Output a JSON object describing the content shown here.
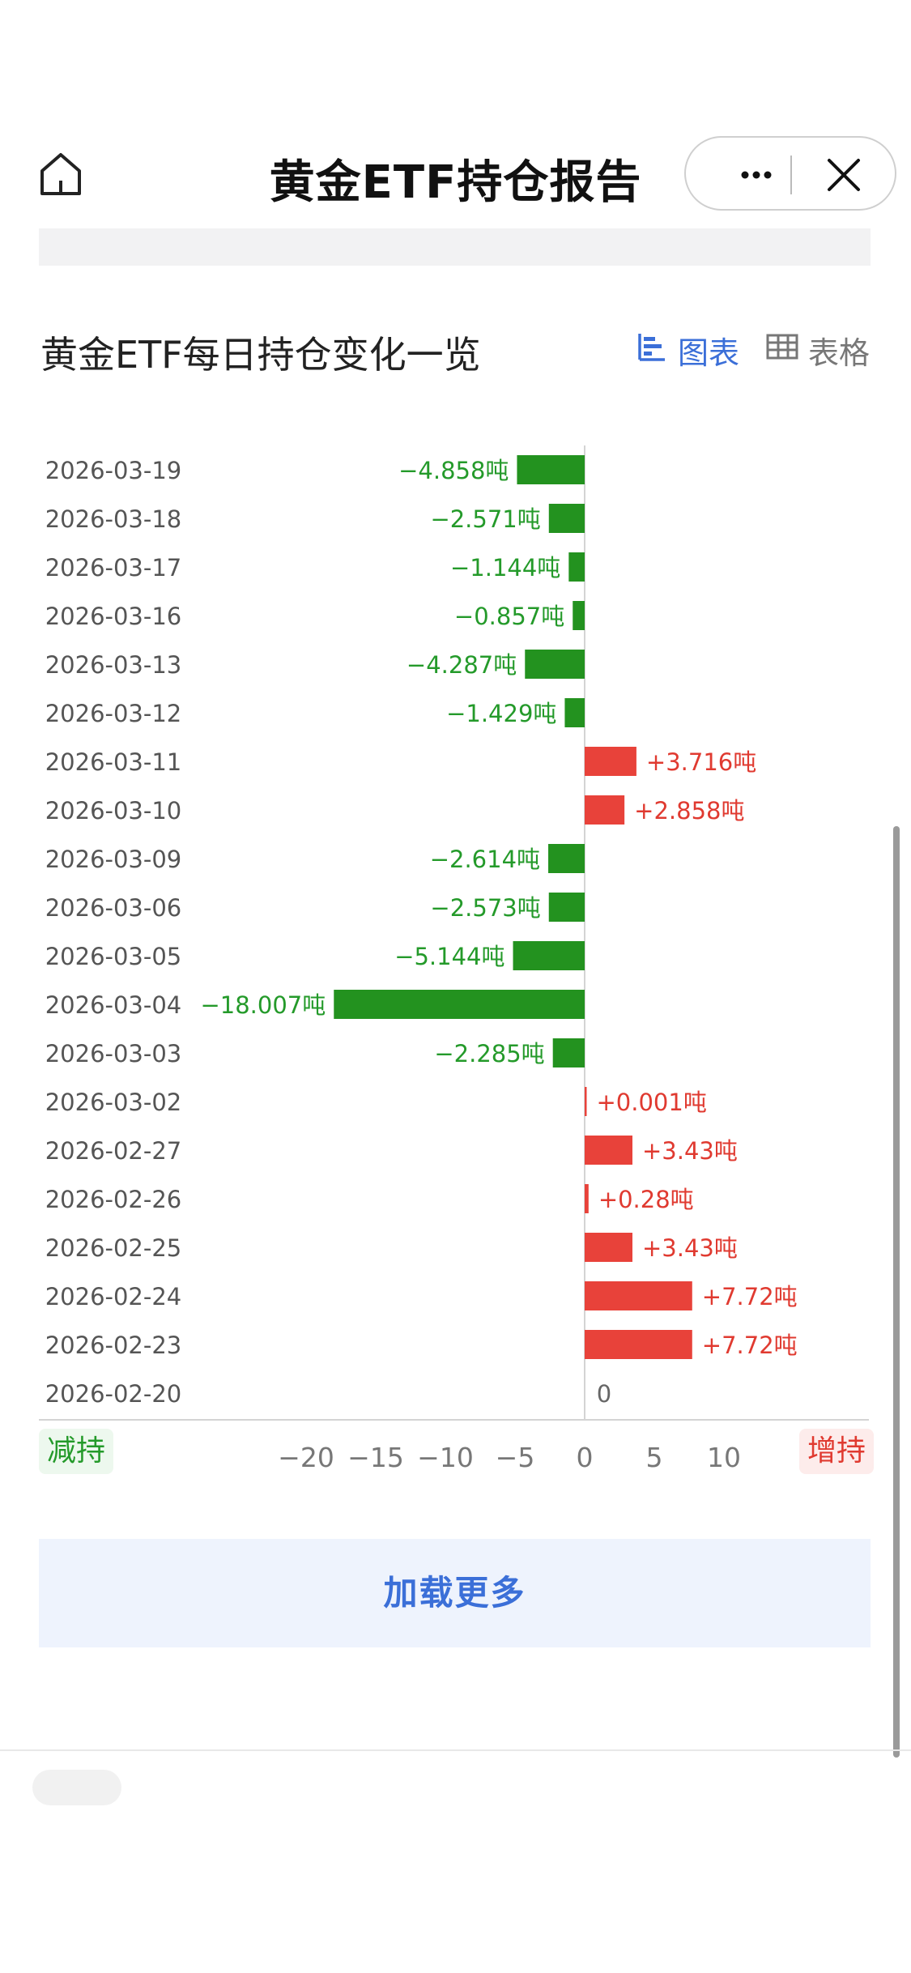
{
  "nav": {
    "title": "黄金ETF持仓报告",
    "home_icon": "home-icon",
    "more_icon": "more-dots-icon",
    "close_icon": "close-icon"
  },
  "section": {
    "title": "黄金ETF每日持仓变化一览",
    "tabs": [
      {
        "label": "图表",
        "icon": "bar-chart-icon",
        "active": true
      },
      {
        "label": "表格",
        "icon": "table-icon",
        "active": false
      }
    ]
  },
  "chart_data": {
    "type": "bar",
    "orientation": "horizontal",
    "categories": [
      "2026-03-19",
      "2026-03-18",
      "2026-03-17",
      "2026-03-16",
      "2026-03-13",
      "2026-03-12",
      "2026-03-11",
      "2026-03-10",
      "2026-03-09",
      "2026-03-06",
      "2026-03-05",
      "2026-03-04",
      "2026-03-03",
      "2026-03-02",
      "2026-02-27",
      "2026-02-26",
      "2026-02-25",
      "2026-02-24",
      "2026-02-23",
      "2026-02-20"
    ],
    "values": [
      -4.858,
      -2.571,
      -1.144,
      -0.857,
      -4.287,
      -1.429,
      3.716,
      2.858,
      -2.614,
      -2.573,
      -5.144,
      -18.007,
      -2.285,
      0.001,
      3.43,
      0.28,
      3.43,
      7.72,
      7.72,
      0
    ],
    "value_labels": [
      "−4.858吨",
      "−2.571吨",
      "−1.144吨",
      "−0.857吨",
      "−4.287吨",
      "−1.429吨",
      "+3.716吨",
      "+2.858吨",
      "−2.614吨",
      "−2.573吨",
      "−5.144吨",
      "−18.007吨",
      "−2.285吨",
      "+0.001吨",
      "+3.43吨",
      "+0.28吨",
      "+3.43吨",
      "+7.72吨",
      "+7.72吨",
      "0"
    ],
    "xlim": [
      -20,
      10
    ],
    "xticks": [
      -20,
      -15,
      -10,
      -5,
      0,
      5,
      10
    ],
    "xtick_labels": [
      "−20",
      "−15",
      "−10",
      "−5",
      "0",
      "5",
      "10"
    ],
    "colors": {
      "positive": "#e8423a",
      "negative": "#23921f",
      "pos_text": "#e03a30",
      "neg_text": "#249a2a"
    },
    "legend_left": "减持",
    "legend_right": "增持"
  },
  "load_more": "加载更多"
}
